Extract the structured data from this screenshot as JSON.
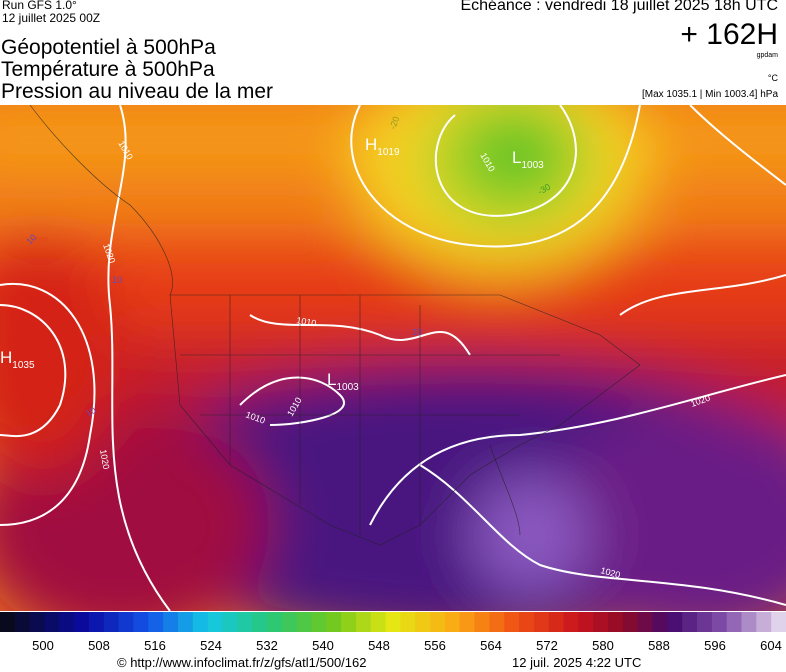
{
  "header": {
    "run": "Run GFS 1.0°",
    "run_date": "12 juillet 2025 00Z",
    "valid": "Echéance : vendredi 18 juillet 2025 18h UTC",
    "lead": "+ 162H",
    "unit_geo": "gpdam",
    "unit_temp": "°C",
    "extremes": "[Max 1035.1 | Min 1003.4] hPa"
  },
  "titles": [
    "Géopotentiel à 500hPa",
    "Température à 500hPa",
    "Pression au niveau de la mer"
  ],
  "map": {
    "centers": [
      {
        "symbol": "H",
        "value": "1019"
      },
      {
        "symbol": "L",
        "value": "1003"
      },
      {
        "symbol": "H",
        "value": "1035"
      },
      {
        "symbol": "L",
        "value": "1003"
      }
    ],
    "isobar_labels": [
      "1010",
      "1020",
      "1010",
      "1010",
      "1010",
      "1020",
      "1020",
      "1020",
      "1010",
      "-20",
      "-30",
      "10",
      "10",
      "10",
      "10"
    ]
  },
  "scale": {
    "ticks": [
      500,
      508,
      516,
      524,
      532,
      540,
      548,
      556,
      564,
      572,
      580,
      588,
      596,
      604
    ]
  },
  "footer": {
    "source": "© http://www.infoclimat.fr/z/gfs/atl1/500/162",
    "generated": "12 juil. 2025  4:22 UTC"
  }
}
